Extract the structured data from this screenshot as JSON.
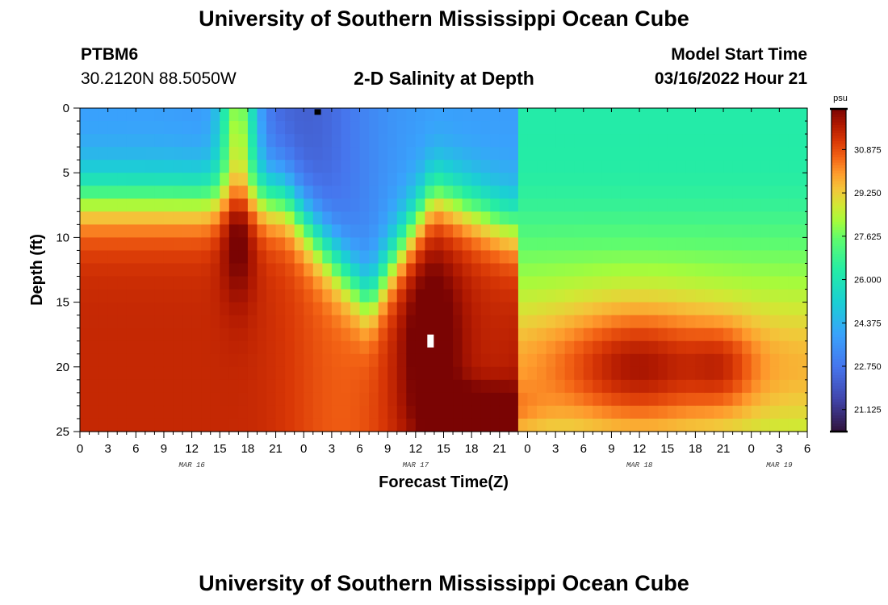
{
  "page_title": "University of Southern Mississippi Ocean Cube",
  "footer_title": "University of Southern Mississippi Ocean Cube",
  "station": {
    "id": "PTBM6",
    "location": "30.2120N  88.5050W"
  },
  "plot_title": "2-D Salinity at Depth",
  "model_start": {
    "label": "Model Start Time",
    "value": "03/16/2022 Hour 21"
  },
  "chart_data": {
    "type": "heatmap",
    "title": "2-D Salinity at Depth",
    "xlabel": "Forecast Time(Z)",
    "ylabel": "Depth (ft)",
    "x_hours_range": [
      0,
      78
    ],
    "x_tick_labels": [
      "0",
      "3",
      "6",
      "9",
      "12",
      "15",
      "18",
      "21",
      "0",
      "3",
      "6",
      "9",
      "12",
      "15",
      "18",
      "21",
      "0",
      "3",
      "6",
      "9",
      "12",
      "15",
      "18",
      "21",
      "0",
      "3",
      "6"
    ],
    "x_date_labels": [
      {
        "label": "MAR 16",
        "hour": 12
      },
      {
        "label": "MAR 17",
        "hour": 36
      },
      {
        "label": "MAR 18",
        "hour": 60
      },
      {
        "label": "MAR 19",
        "hour": 75
      }
    ],
    "y_range": [
      0,
      25
    ],
    "y_ticks": [
      0,
      5,
      10,
      15,
      20,
      25
    ],
    "y_tick_labels": [
      "0",
      "5",
      "10",
      "15",
      "20",
      "25"
    ],
    "colorbar": {
      "unit": "psu",
      "min": 20.3,
      "max": 32.4,
      "tick_values": [
        30.875,
        29.25,
        27.625,
        26.0,
        24.375,
        22.75,
        21.125
      ],
      "tick_labels": [
        "30.875",
        "29.250",
        "27.625",
        "26.000",
        "24.375",
        "22.750",
        "21.125"
      ]
    },
    "markers": [
      {
        "color": "#000000",
        "hour": 25.5,
        "depth": 0.3
      },
      {
        "color": "#ffffff",
        "hour": 37.6,
        "depth": 18
      }
    ]
  }
}
